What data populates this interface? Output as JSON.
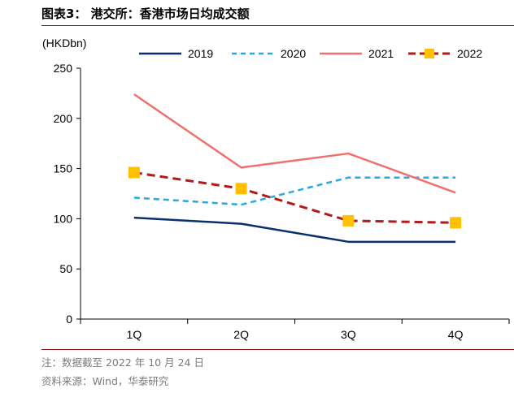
{
  "figure": {
    "title": "图表3： 港交所：香港市场日均成交额",
    "note": "注：数据截至 2022 年 10 月 24 日",
    "source": "资料来源：Wind，华泰研究"
  },
  "chart_data": {
    "type": "line",
    "title": "",
    "ylabel": "(HKDbn)",
    "xlabel": "",
    "categories": [
      "1Q",
      "2Q",
      "3Q",
      "4Q"
    ],
    "ylim": [
      0,
      250
    ],
    "yticks": [
      0,
      50,
      100,
      150,
      200,
      250
    ],
    "grid": false,
    "legend_position": "top",
    "series": [
      {
        "name": "2019",
        "values": [
          101,
          95,
          77,
          77
        ],
        "color": "#0b2f6e",
        "style": "solid",
        "marker": "none"
      },
      {
        "name": "2020",
        "values": [
          121,
          114,
          141,
          141
        ],
        "color": "#29a8e0",
        "style": "dashed",
        "marker": "none"
      },
      {
        "name": "2021",
        "values": [
          224,
          151,
          165,
          126
        ],
        "color": "#f07070",
        "style": "solid",
        "marker": "none"
      },
      {
        "name": "2022",
        "values": [
          146,
          130,
          98,
          96
        ],
        "color": "#b11b1b",
        "style": "dashed",
        "marker": "square",
        "marker_color": "#ffc000"
      }
    ]
  }
}
